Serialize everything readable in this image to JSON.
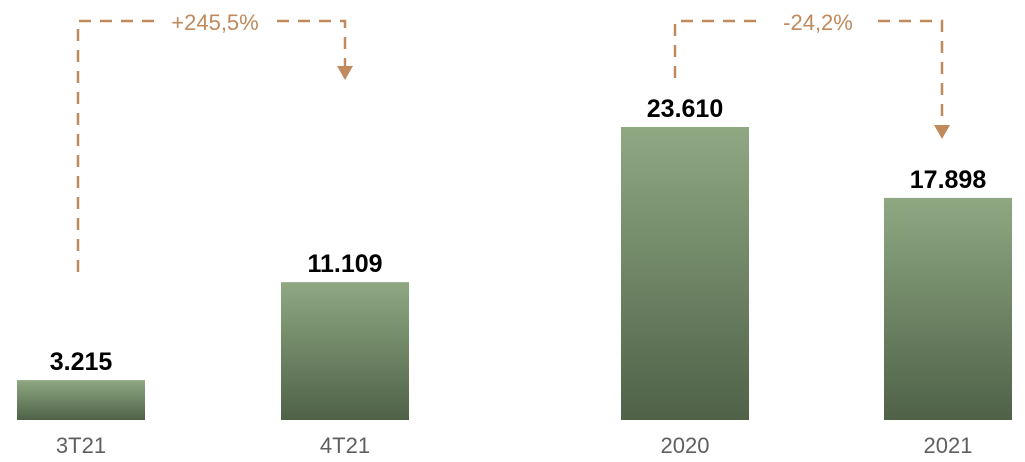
{
  "chart_data": {
    "type": "bar",
    "title": "",
    "xlabel": "",
    "ylabel": "",
    "categories": [
      "3T21",
      "4T21",
      "2020",
      "2021"
    ],
    "values": [
      3215,
      11109,
      23610,
      17898
    ],
    "value_labels": [
      "3.215",
      "11.109",
      "23.610",
      "17.898"
    ],
    "ylim": [
      0,
      23610
    ],
    "grid": false,
    "legend": "none",
    "annotations": [
      {
        "from": "3T21",
        "to": "4T21",
        "label": "+245,5%"
      },
      {
        "from": "2020",
        "to": "2021",
        "label": "-24,2%"
      }
    ]
  },
  "colors": {
    "bar_top": "#8fa882",
    "bar_bottom": "#4f6248",
    "annotation": "#c08a5c",
    "value_text": "#000000",
    "category_text": "#5f5f5f"
  }
}
